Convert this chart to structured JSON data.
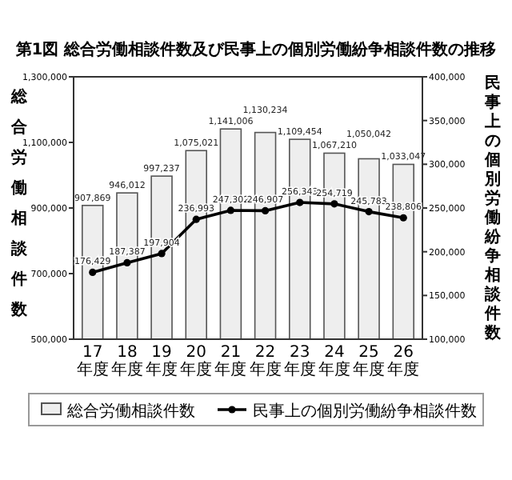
{
  "chart_data": {
    "type": "bar",
    "title": "第1図 総合労働相談件数及び民事上の個別労働紛争相談件数の推移",
    "ylabel": "総合労働相談件数",
    "y2label": "民事上の個別労働紛争相談件数",
    "categories": [
      "17年度",
      "18年度",
      "19年度",
      "20年度",
      "21年度",
      "22年度",
      "23年度",
      "24年度",
      "25年度",
      "26年度"
    ],
    "series": [
      {
        "name": "総合労働相談件数",
        "color": "#eeeeee",
        "values": [
          907869,
          946012,
          997237,
          1075021,
          1141006,
          1130234,
          1109454,
          1067210,
          1050042,
          1033047
        ],
        "value_labels": [
          "907,869",
          "946,012",
          "997,237",
          "1,075,021",
          "1,141,006",
          "1,130,234",
          "1,109,454",
          "1,067,210",
          "1,050,042",
          "1,033,047"
        ]
      },
      {
        "name": "民事上の個別労働紛争相談件数",
        "type": "line",
        "axis": "y2",
        "color": "#000000",
        "values": [
          176429,
          187387,
          197904,
          236993,
          247302,
          246907,
          256343,
          254719,
          245783,
          238806
        ],
        "value_labels": [
          "176,429",
          "187,387",
          "197,904",
          "236,993",
          "247,302",
          "246,907",
          "256,343",
          "254,719",
          "245,783",
          "238,806"
        ]
      }
    ],
    "ylim": [
      500000,
      1300000
    ],
    "yticks": [
      {
        "value": 500000,
        "label": "500,000"
      },
      {
        "value": 700000,
        "label": "700,000"
      },
      {
        "value": 900000,
        "label": "900,000"
      },
      {
        "value": 1100000,
        "label": "1,100,000"
      },
      {
        "value": 1300000,
        "label": "1,300,000"
      }
    ],
    "y2lim": [
      100000,
      400000
    ],
    "y2ticks": [
      {
        "value": 100000,
        "label": "100,000"
      },
      {
        "value": 150000,
        "label": "150,000"
      },
      {
        "value": 200000,
        "label": "200,000"
      },
      {
        "value": 250000,
        "label": "250,000"
      },
      {
        "value": 300000,
        "label": "300,000"
      },
      {
        "value": 350000,
        "label": "350,000"
      },
      {
        "value": 400000,
        "label": "400,000"
      }
    ],
    "legend": "bottom",
    "marker": "circle",
    "grid": false
  }
}
